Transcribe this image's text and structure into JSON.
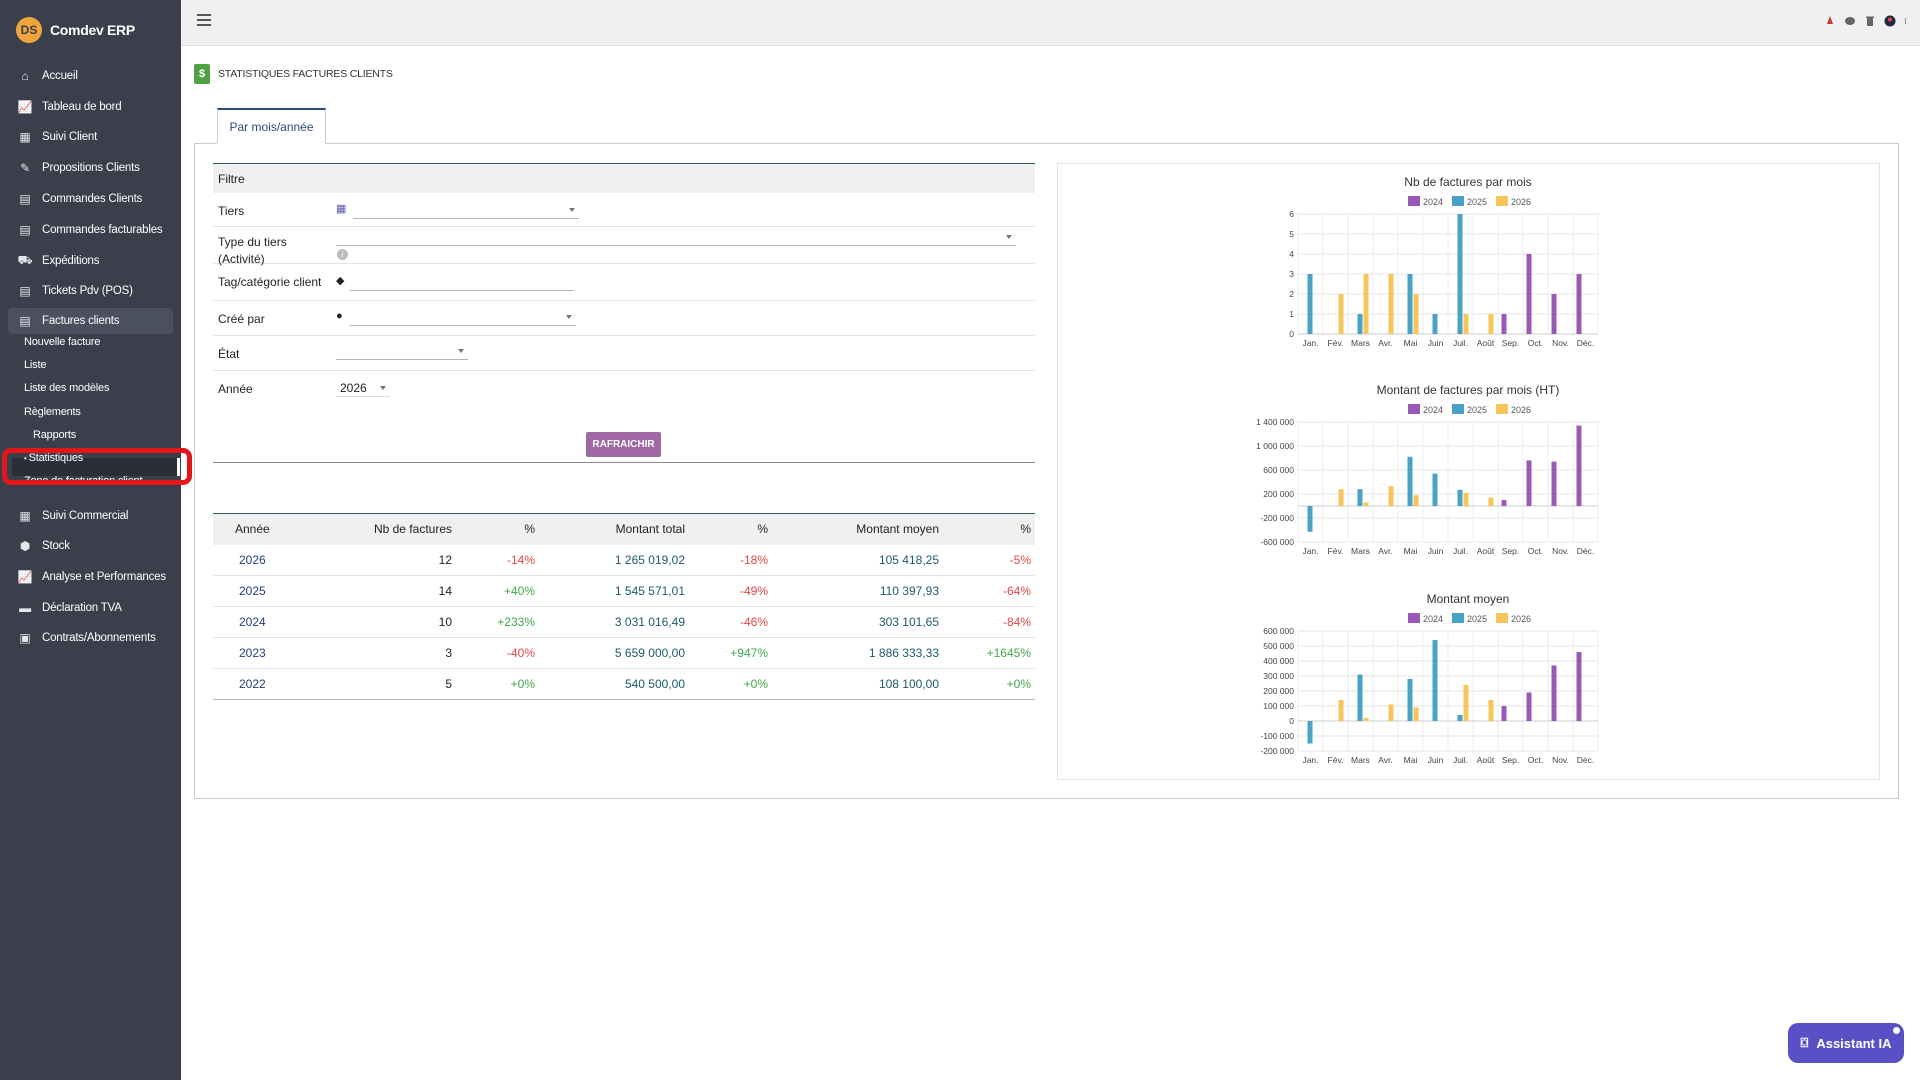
{
  "app": {
    "name": "Comdev ERP",
    "logo_text": "DS"
  },
  "sidebar": {
    "items": [
      {
        "label": "Accueil",
        "icon": "home-icon",
        "glyph": "⌂",
        "top": 63
      },
      {
        "label": "Tableau de bord",
        "icon": "chart-line-icon",
        "glyph": "📈",
        "top": 94
      },
      {
        "label": "Suivi Client",
        "icon": "building-icon",
        "glyph": "▦",
        "top": 124
      },
      {
        "label": "Propositions Clients",
        "icon": "file-signature-icon",
        "glyph": "✎",
        "top": 155
      },
      {
        "label": "Commandes Clients",
        "icon": "file-icon",
        "glyph": "▤",
        "top": 186
      },
      {
        "label": "Commandes facturables",
        "icon": "file-invoice-icon",
        "glyph": "▤",
        "top": 217
      },
      {
        "label": "Expéditions",
        "icon": "dolly-icon",
        "glyph": "⛟",
        "top": 248
      },
      {
        "label": "Tickets Pdv (POS)",
        "icon": "file-icon",
        "glyph": "▤",
        "top": 278
      },
      {
        "label": "Factures clients",
        "icon": "file-invoice-dollar-icon",
        "glyph": "▤",
        "top": 308
      }
    ],
    "sub_items": [
      {
        "label": "Nouvelle facture",
        "top": 343,
        "left": 24
      },
      {
        "label": "Liste",
        "top": 366,
        "left": 24
      },
      {
        "label": "Liste des modèles",
        "top": 389,
        "left": 24
      },
      {
        "label": "Règlements",
        "top": 413,
        "left": 24
      },
      {
        "label": "Rapports",
        "top": 436,
        "left": 33
      },
      {
        "label": "Statistiques",
        "top": 459,
        "left": 24
      },
      {
        "label": "Zone de facturation client",
        "top": 482,
        "left": 24
      }
    ],
    "items_after": [
      {
        "label": "Suivi Commercial",
        "icon": "building-icon",
        "glyph": "▦",
        "top": 503
      },
      {
        "label": "Stock",
        "icon": "box-icon",
        "glyph": "⬢",
        "top": 533
      },
      {
        "label": "Analyse et Performances",
        "icon": "chart-line-icon",
        "glyph": "📈",
        "top": 564
      },
      {
        "label": "Déclaration TVA",
        "icon": "money-check-icon",
        "glyph": "▬",
        "top": 595
      },
      {
        "label": "Contrats/Abonnements",
        "icon": "briefcase-icon",
        "glyph": "▣",
        "top": 625
      }
    ]
  },
  "page": {
    "title": "STATISTIQUES FACTURES CLIENTS",
    "tab_label": "Par mois/année"
  },
  "filter": {
    "header": "Filtre",
    "tiers_label": "Tiers",
    "type_label_1": "Type du tiers",
    "type_label_2": "(Activité)",
    "tag_label": "Tag/catégorie client",
    "cree_label": "Créé par",
    "etat_label": "État",
    "annee_label": "Année",
    "annee_value": "2026",
    "refresh_label": "RAFRAICHIR"
  },
  "stats_table": {
    "headers": [
      "Année",
      "Nb de factures",
      "%",
      "Montant total",
      "%",
      "Montant moyen",
      "%"
    ],
    "rows": [
      {
        "year": "2026",
        "nb": "12",
        "p1": "-14%",
        "total": "1 265 019,02",
        "p2": "-18%",
        "avg": "105 418,25",
        "p3": "-5%"
      },
      {
        "year": "2025",
        "nb": "14",
        "p1": "+40%",
        "total": "1 545 571,01",
        "p2": "-49%",
        "avg": "110 397,93",
        "p3": "-64%"
      },
      {
        "year": "2024",
        "nb": "10",
        "p1": "+233%",
        "total": "3 031 016,49",
        "p2": "-46%",
        "avg": "303 101,65",
        "p3": "-84%"
      },
      {
        "year": "2023",
        "nb": "3",
        "p1": "-40%",
        "total": "5 659 000,00",
        "p2": "+947%",
        "avg": "1 886 333,33",
        "p3": "+1645%"
      },
      {
        "year": "2022",
        "nb": "5",
        "p1": "+0%",
        "total": "540 500,00",
        "p2": "+0%",
        "avg": "108 100,00",
        "p3": "+0%"
      }
    ]
  },
  "colors": {
    "c2024": "#9b59b6",
    "c2025": "#4aa3c4",
    "c2026": "#f7c65a",
    "accent": "#a069a4",
    "sidebar": "#3a3f4b"
  },
  "chart_data": [
    {
      "type": "bar",
      "title": "Nb de factures par mois",
      "categories": [
        "Jan.",
        "Fév.",
        "Mars",
        "Avr.",
        "Mai",
        "Juin",
        "Juil.",
        "Août",
        "Sep.",
        "Oct.",
        "Nov.",
        "Déc."
      ],
      "series": [
        {
          "name": "2024",
          "values": [
            0,
            0,
            0,
            0,
            0,
            0,
            0,
            0,
            1,
            4,
            2,
            3
          ]
        },
        {
          "name": "2025",
          "values": [
            3,
            0,
            1,
            0,
            3,
            1,
            6,
            0,
            0,
            0,
            0,
            0
          ]
        },
        {
          "name": "2026",
          "values": [
            0,
            2,
            3,
            3,
            2,
            0,
            1,
            1,
            0,
            0,
            0,
            0
          ]
        }
      ],
      "yticks": [
        "0",
        "1",
        "2",
        "3",
        "4",
        "5",
        "6"
      ],
      "ytick_values": [
        0,
        1,
        2,
        3,
        4,
        5,
        6
      ],
      "ylim": [
        0,
        6
      ],
      "grid": true,
      "legend": "top"
    },
    {
      "type": "bar",
      "title": "Montant de factures par mois (HT)",
      "categories": [
        "Jan.",
        "Fév.",
        "Mars",
        "Avr.",
        "Mai",
        "Juin",
        "Juil.",
        "Août",
        "Sep.",
        "Oct.",
        "Nov.",
        "Déc."
      ],
      "series": [
        {
          "name": "2024",
          "values": [
            0,
            0,
            0,
            0,
            0,
            0,
            0,
            0,
            100000,
            760000,
            740000,
            1340000
          ]
        },
        {
          "name": "2025",
          "values": [
            -430000,
            0,
            280000,
            0,
            820000,
            540000,
            270000,
            0,
            0,
            0,
            0,
            0
          ]
        },
        {
          "name": "2026",
          "values": [
            0,
            280000,
            60000,
            330000,
            180000,
            0,
            220000,
            140000,
            0,
            0,
            0,
            0
          ]
        }
      ],
      "yticks": [
        "-600 000",
        "-200 000",
        "200 000",
        "600 000",
        "1 000 000",
        "1 400 000"
      ],
      "ytick_values": [
        -600000,
        -200000,
        200000,
        600000,
        1000000,
        1400000
      ],
      "ylim": [
        -600000,
        1400000
      ],
      "grid": true,
      "legend": "top"
    },
    {
      "type": "bar",
      "title": "Montant moyen",
      "categories": [
        "Jan.",
        "Fév.",
        "Mars",
        "Avr.",
        "Mai",
        "Juin",
        "Juil.",
        "Août",
        "Sep.",
        "Oct.",
        "Nov.",
        "Déc."
      ],
      "series": [
        {
          "name": "2024",
          "values": [
            0,
            0,
            0,
            0,
            0,
            0,
            0,
            0,
            100000,
            190000,
            370000,
            460000
          ]
        },
        {
          "name": "2025",
          "values": [
            -150000,
            0,
            310000,
            0,
            280000,
            540000,
            40000,
            0,
            0,
            0,
            0,
            0
          ]
        },
        {
          "name": "2026",
          "values": [
            0,
            140000,
            20000,
            110000,
            90000,
            0,
            240000,
            140000,
            0,
            0,
            0,
            0
          ]
        }
      ],
      "yticks": [
        "-200 000",
        "-100 000",
        "0",
        "100 000",
        "200 000",
        "300 000",
        "400 000",
        "500 000",
        "600 000"
      ],
      "ytick_values": [
        -200000,
        -100000,
        0,
        100000,
        200000,
        300000,
        400000,
        500000,
        600000
      ],
      "ylim": [
        -200000,
        600000
      ],
      "grid": true,
      "legend": "top"
    }
  ],
  "assistant": {
    "label": "Assistant IA"
  }
}
